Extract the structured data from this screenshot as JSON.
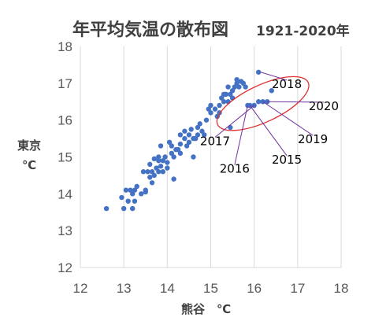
{
  "chart_data": {
    "type": "scatter",
    "title": "年平均気温の散布図",
    "subtitle": "1921-2020年",
    "xlabel": "熊谷　℃",
    "ylabel_line1": "東京",
    "ylabel_line2": "℃",
    "xlim": [
      12,
      18
    ],
    "ylim": [
      12,
      18
    ],
    "xticks": [
      "12",
      "13",
      "14",
      "15",
      "16",
      "17",
      "18"
    ],
    "yticks": [
      "12",
      "13",
      "14",
      "15",
      "16",
      "17",
      "18"
    ],
    "grid": "vertical",
    "point_color": "#4472C4",
    "points": [
      [
        12.6,
        13.6
      ],
      [
        12.95,
        13.9
      ],
      [
        13.0,
        13.6
      ],
      [
        13.05,
        14.1
      ],
      [
        13.1,
        13.8
      ],
      [
        13.2,
        14.0
      ],
      [
        13.2,
        13.6
      ],
      [
        13.25,
        14.1
      ],
      [
        13.25,
        13.8
      ],
      [
        13.3,
        14.2
      ],
      [
        13.15,
        14.1
      ],
      [
        13.4,
        14.0
      ],
      [
        13.5,
        14.05
      ],
      [
        13.45,
        14.6
      ],
      [
        13.5,
        14.1
      ],
      [
        13.55,
        14.6
      ],
      [
        13.6,
        14.45
      ],
      [
        13.6,
        14.8
      ],
      [
        13.65,
        14.3
      ],
      [
        13.65,
        14.6
      ],
      [
        13.7,
        14.95
      ],
      [
        13.7,
        14.5
      ],
      [
        13.75,
        14.7
      ],
      [
        13.8,
        14.9
      ],
      [
        13.8,
        14.6
      ],
      [
        13.85,
        14.75
      ],
      [
        13.85,
        15.3
      ],
      [
        13.9,
        14.9
      ],
      [
        13.9,
        14.6
      ],
      [
        13.95,
        15.0
      ],
      [
        14.0,
        14.85
      ],
      [
        14.05,
        15.4
      ],
      [
        14.1,
        15.1
      ],
      [
        14.1,
        15.3
      ],
      [
        14.15,
        14.4
      ],
      [
        14.15,
        15.0
      ],
      [
        14.2,
        15.2
      ],
      [
        14.25,
        15.2
      ],
      [
        14.3,
        15.6
      ],
      [
        14.3,
        15.35
      ],
      [
        14.3,
        15.1
      ],
      [
        14.4,
        15.5
      ],
      [
        14.4,
        15.7
      ],
      [
        14.45,
        15.3
      ],
      [
        14.5,
        15.6
      ],
      [
        14.5,
        15.4
      ],
      [
        14.55,
        15.75
      ],
      [
        14.6,
        15.5
      ],
      [
        14.65,
        15.5
      ],
      [
        14.7,
        15.8
      ],
      [
        14.75,
        15.9
      ],
      [
        14.8,
        15.7
      ],
      [
        14.85,
        15.6
      ],
      [
        14.9,
        16.0
      ],
      [
        14.95,
        16.3
      ],
      [
        15.0,
        16.2
      ],
      [
        15.0,
        16.4
      ],
      [
        15.1,
        16.3
      ],
      [
        15.15,
        16.1
      ],
      [
        15.2,
        16.4
      ],
      [
        15.25,
        16.6
      ],
      [
        15.3,
        16.5
      ],
      [
        15.35,
        16.7
      ],
      [
        15.4,
        16.5
      ],
      [
        15.4,
        16.9
      ],
      [
        15.45,
        16.7
      ],
      [
        15.5,
        16.8
      ],
      [
        15.5,
        16.6
      ],
      [
        15.55,
        16.9
      ],
      [
        15.6,
        17.0
      ],
      [
        15.6,
        17.1
      ],
      [
        15.65,
        16.9
      ],
      [
        15.7,
        17.05
      ],
      [
        15.75,
        17.0
      ],
      [
        15.8,
        16.9
      ],
      [
        15.85,
        16.4
      ],
      [
        15.9,
        16.4
      ],
      [
        16.0,
        16.4
      ],
      [
        16.1,
        16.5
      ],
      [
        16.2,
        16.5
      ],
      [
        16.3,
        16.5
      ],
      [
        16.4,
        16.8
      ],
      [
        16.1,
        17.3
      ],
      [
        15.45,
        15.8
      ],
      [
        15.2,
        16.2
      ],
      [
        14.6,
        15.0
      ],
      [
        13.8,
        15.0
      ],
      [
        14.0,
        14.7
      ],
      [
        14.7,
        15.6
      ],
      [
        15.3,
        16.7
      ]
    ],
    "annotations": [
      {
        "label": "2018",
        "x": 16.15,
        "y": 17.3,
        "tx": 16.75,
        "ty": 17.0
      },
      {
        "label": "2020",
        "x": 16.3,
        "y": 16.5,
        "tx": 17.6,
        "ty": 16.4
      },
      {
        "label": "2019",
        "x": 16.2,
        "y": 16.5,
        "tx": 17.35,
        "ty": 15.5
      },
      {
        "label": "2017",
        "x": 16.0,
        "y": 16.4,
        "tx": 15.1,
        "ty": 15.45
      },
      {
        "label": "2015",
        "x": 15.9,
        "y": 16.4,
        "tx": 16.75,
        "ty": 14.95
      },
      {
        "label": "2016",
        "x": 15.85,
        "y": 16.4,
        "tx": 15.55,
        "ty": 14.7
      }
    ],
    "highlight_ellipse": {
      "color": "#E03030",
      "cx": 16.2,
      "cy": 16.45,
      "rx": 1.15,
      "ry": 0.5,
      "rotate": -25
    }
  }
}
